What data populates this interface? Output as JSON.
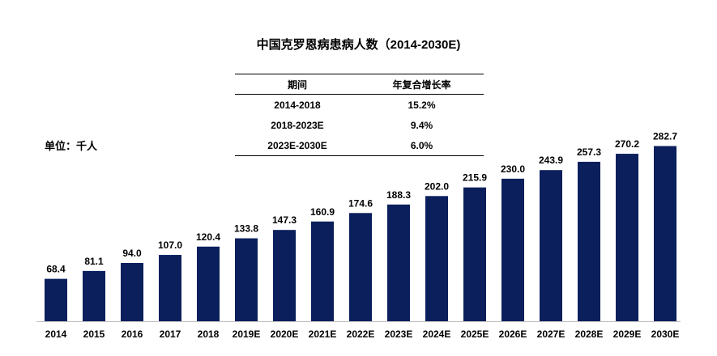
{
  "chart_data": {
    "type": "bar",
    "title": "中国克罗恩病患病人数（2014-2030E)",
    "unit_label": "单位：千人",
    "categories": [
      "2014",
      "2015",
      "2016",
      "2017",
      "2018",
      "2019E",
      "2020E",
      "2021E",
      "2022E",
      "2023E",
      "2024E",
      "2025E",
      "2026E",
      "2027E",
      "2028E",
      "2029E",
      "2030E"
    ],
    "values": [
      68.4,
      81.1,
      94.0,
      107.0,
      120.4,
      133.8,
      147.3,
      160.9,
      174.6,
      188.3,
      202.0,
      215.9,
      230.0,
      243.9,
      257.3,
      270.2,
      282.7
    ],
    "value_labels": [
      "68.4",
      "81.1",
      "94.0",
      "107.0",
      "120.4",
      "133.8",
      "147.3",
      "160.9",
      "174.6",
      "188.3",
      "202.0",
      "215.9",
      "230.0",
      "243.9",
      "257.3",
      "270.2",
      "282.7"
    ],
    "ylim": [
      0,
      300
    ],
    "bar_color": "#0b1f5c",
    "grid": false,
    "cagr_table": {
      "headers": [
        "期间",
        "年复合增长率"
      ],
      "rows": [
        {
          "period": "2014-2018",
          "rate": "15.2%"
        },
        {
          "period": "2018-2023E",
          "rate": "9.4%"
        },
        {
          "period": "2023E-2030E",
          "rate": "6.0%"
        }
      ]
    }
  }
}
